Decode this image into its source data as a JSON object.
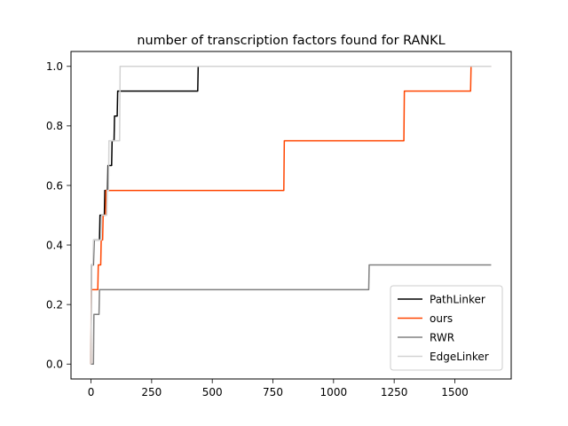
{
  "chart_data": {
    "type": "line",
    "title": "number of transcription factors found for RANKL",
    "xlabel": "",
    "ylabel": "",
    "xlim": [
      -82.5,
      1732.5
    ],
    "ylim": [
      -0.05,
      1.05
    ],
    "xticks": [
      0,
      250,
      500,
      750,
      1000,
      1250,
      1500
    ],
    "xtick_labels": [
      "0",
      "250",
      "500",
      "750",
      "1000",
      "1250",
      "1500"
    ],
    "yticks": [
      0.0,
      0.2,
      0.4,
      0.6,
      0.8,
      1.0
    ],
    "ytick_labels": [
      "0.0",
      "0.2",
      "0.4",
      "0.6",
      "0.8",
      "1.0"
    ],
    "grid": false,
    "legend_position": "lower-right",
    "series": [
      {
        "name": "PathLinker",
        "color": "#000000",
        "points": [
          [
            0,
            0
          ],
          [
            2,
            0.333
          ],
          [
            10,
            0.333
          ],
          [
            12,
            0.417
          ],
          [
            35,
            0.417
          ],
          [
            37,
            0.5
          ],
          [
            55,
            0.5
          ],
          [
            57,
            0.583
          ],
          [
            68,
            0.583
          ],
          [
            70,
            0.667
          ],
          [
            85,
            0.667
          ],
          [
            87,
            0.75
          ],
          [
            95,
            0.75
          ],
          [
            97,
            0.833
          ],
          [
            108,
            0.833
          ],
          [
            110,
            0.917
          ],
          [
            440,
            0.917
          ],
          [
            442,
            1.0
          ],
          [
            1650,
            1.0
          ]
        ]
      },
      {
        "name": "ours",
        "color": "#ff4500",
        "points": [
          [
            0,
            0
          ],
          [
            1,
            0.25
          ],
          [
            28,
            0.25
          ],
          [
            30,
            0.333
          ],
          [
            40,
            0.333
          ],
          [
            42,
            0.417
          ],
          [
            48,
            0.417
          ],
          [
            50,
            0.5
          ],
          [
            60,
            0.5
          ],
          [
            62,
            0.583
          ],
          [
            795,
            0.583
          ],
          [
            797,
            0.75
          ],
          [
            1290,
            0.75
          ],
          [
            1292,
            0.917
          ],
          [
            1565,
            0.917
          ],
          [
            1567,
            1.0
          ],
          [
            1650,
            1.0
          ]
        ]
      },
      {
        "name": "RWR",
        "color": "#808080",
        "points": [
          [
            0,
            0
          ],
          [
            10,
            0
          ],
          [
            12,
            0.167
          ],
          [
            33,
            0.167
          ],
          [
            35,
            0.25
          ],
          [
            1145,
            0.25
          ],
          [
            1147,
            0.333
          ],
          [
            1650,
            0.333
          ]
        ]
      },
      {
        "name": "EdgeLinker",
        "color": "#d3d3d3",
        "points": [
          [
            0,
            0
          ],
          [
            2,
            0.333
          ],
          [
            8,
            0.333
          ],
          [
            10,
            0.417
          ],
          [
            42,
            0.417
          ],
          [
            44,
            0.5
          ],
          [
            65,
            0.5
          ],
          [
            67,
            0.583
          ],
          [
            72,
            0.583
          ],
          [
            74,
            0.75
          ],
          [
            118,
            0.75
          ],
          [
            120,
            1.0
          ],
          [
            1650,
            1.0
          ]
        ]
      }
    ]
  }
}
